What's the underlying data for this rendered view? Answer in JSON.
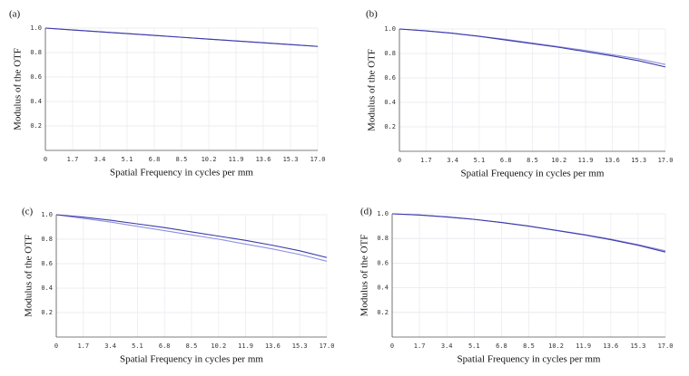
{
  "chart_data": [
    {
      "type": "line",
      "panel": "(a)",
      "xlabel": "Spatial Frequency in cycles per mm",
      "ylabel": "Modulus of the OTF",
      "x": [
        0,
        1.7,
        3.4,
        5.1,
        6.8,
        8.5,
        10.2,
        11.9,
        13.6,
        15.3,
        17
      ],
      "series": [
        {
          "color": "#8f8fe0",
          "values": [
            1.0,
            0.985,
            0.97,
            0.955,
            0.94,
            0.925,
            0.91,
            0.895,
            0.88,
            0.865,
            0.851
          ]
        },
        {
          "color": "#3a3aa8",
          "values": [
            1.0,
            0.985,
            0.97,
            0.955,
            0.94,
            0.925,
            0.91,
            0.895,
            0.88,
            0.865,
            0.85
          ]
        }
      ],
      "xlim": [
        0,
        17
      ],
      "ylim": [
        0,
        1
      ],
      "xticks": [
        0,
        1.7,
        3.4,
        5.1,
        6.8,
        8.5,
        10.2,
        11.9,
        13.6,
        15.3,
        {
          "value": 17,
          "label": "17.0"
        }
      ],
      "yticks": [
        0.2,
        0.4,
        0.6,
        0.8,
        {
          "value": 1,
          "label": "1.0"
        }
      ],
      "grid": true
    },
    {
      "type": "line",
      "panel": "(b)",
      "xlabel": "Spatial Frequency in cycles per mm",
      "ylabel": "Modulus of the OTF",
      "x": [
        0,
        1.7,
        3.4,
        5.1,
        6.8,
        8.5,
        10.2,
        11.9,
        13.6,
        15.3,
        17
      ],
      "series": [
        {
          "color": "#8f8fe0",
          "values": [
            1.0,
            0.985,
            0.965,
            0.94,
            0.915,
            0.885,
            0.855,
            0.825,
            0.79,
            0.755,
            0.71
          ]
        },
        {
          "color": "#3a3aa8",
          "values": [
            1.0,
            0.985,
            0.965,
            0.94,
            0.91,
            0.88,
            0.85,
            0.815,
            0.78,
            0.74,
            0.69
          ]
        }
      ],
      "xlim": [
        0,
        17
      ],
      "ylim": [
        0,
        1
      ],
      "xticks": [
        0,
        1.7,
        3.4,
        5.1,
        6.8,
        8.5,
        10.2,
        11.9,
        13.6,
        15.3,
        {
          "value": 17,
          "label": "17.0"
        }
      ],
      "yticks": [
        0.2,
        0.4,
        0.6,
        0.8,
        {
          "value": 1,
          "label": "1.0"
        }
      ],
      "grid": true
    },
    {
      "type": "line",
      "panel": "(c)",
      "xlabel": "Spatial Frequency in cycles per mm",
      "ylabel": "Modulus of the OTF",
      "x": [
        0,
        1.7,
        3.4,
        5.1,
        6.8,
        8.5,
        10.2,
        11.9,
        13.6,
        15.3,
        17
      ],
      "series": [
        {
          "color": "#8f8fe0",
          "values": [
            1.0,
            0.97,
            0.94,
            0.905,
            0.87,
            0.835,
            0.8,
            0.76,
            0.72,
            0.675,
            0.62
          ]
        },
        {
          "color": "#3a3aa8",
          "values": [
            1.0,
            0.98,
            0.955,
            0.925,
            0.895,
            0.86,
            0.825,
            0.79,
            0.75,
            0.705,
            0.65
          ]
        }
      ],
      "xlim": [
        0,
        17
      ],
      "ylim": [
        0,
        1
      ],
      "xticks": [
        0,
        1.7,
        3.4,
        5.1,
        6.8,
        8.5,
        10.2,
        11.9,
        13.6,
        15.3,
        {
          "value": 17,
          "label": "17.0"
        }
      ],
      "yticks": [
        0.2,
        0.4,
        0.6,
        0.8,
        {
          "value": 1,
          "label": "1.0"
        }
      ],
      "grid": true
    },
    {
      "type": "line",
      "panel": "(d)",
      "xlabel": "Spatial Frequency in cycles per mm",
      "ylabel": "Modulus of the OTF",
      "x": [
        0,
        1.7,
        3.4,
        5.1,
        6.8,
        8.5,
        10.2,
        11.9,
        13.6,
        15.3,
        17
      ],
      "series": [
        {
          "color": "#8f8fe0",
          "values": [
            1.0,
            0.99,
            0.975,
            0.955,
            0.93,
            0.9,
            0.867,
            0.833,
            0.795,
            0.75,
            0.7
          ]
        },
        {
          "color": "#3a3aa8",
          "values": [
            1.0,
            0.99,
            0.975,
            0.955,
            0.93,
            0.9,
            0.865,
            0.83,
            0.79,
            0.745,
            0.69
          ]
        }
      ],
      "xlim": [
        0,
        17
      ],
      "ylim": [
        0,
        1
      ],
      "xticks": [
        0,
        1.7,
        3.4,
        5.1,
        6.8,
        8.5,
        10.2,
        11.9,
        13.6,
        15.3,
        {
          "value": 17,
          "label": "17.0"
        }
      ],
      "yticks": [
        0.2,
        0.4,
        0.6,
        0.8,
        {
          "value": 1,
          "label": "1.0"
        }
      ],
      "grid": true
    }
  ]
}
